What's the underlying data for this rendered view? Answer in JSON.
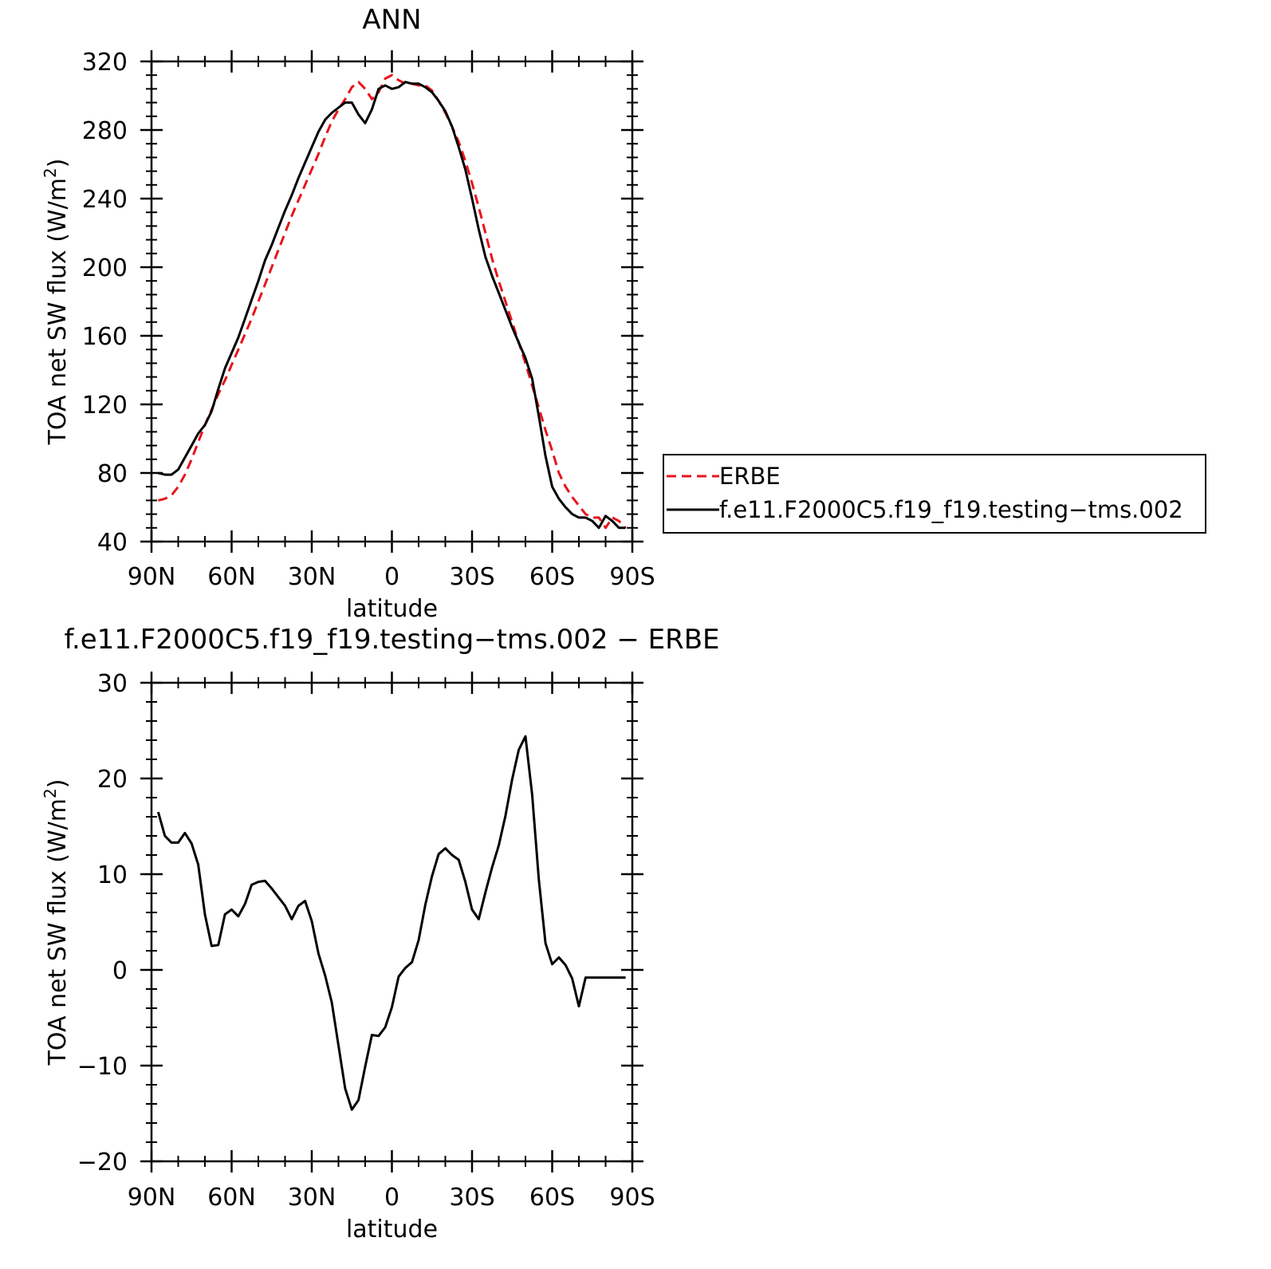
{
  "chart_data": [
    {
      "type": "line",
      "title": "ANN",
      "xlabel": "latitude",
      "ylabel_main": "TOA net SW flux (W/m",
      "ylabel_sup": "2",
      "ylabel_close": ")",
      "xlim": [
        90,
        -90
      ],
      "ylim": [
        40,
        320
      ],
      "x_ticks": [
        90,
        60,
        30,
        0,
        -30,
        -60,
        -90
      ],
      "x_tick_labels": [
        "90N",
        "60N",
        "30N",
        "0",
        "30S",
        "60S",
        "90S"
      ],
      "y_ticks": [
        40,
        80,
        120,
        160,
        200,
        240,
        280,
        320
      ],
      "y_tick_labels": [
        "40",
        "80",
        "120",
        "160",
        "200",
        "240",
        "280",
        "320"
      ],
      "legend_position": "right",
      "series": [
        {
          "name": "ERBE",
          "color": "#e8141c",
          "dash": "dashed",
          "x": [
            87.5,
            85,
            82.5,
            80,
            77.5,
            75,
            72.5,
            70,
            67.5,
            65,
            62.5,
            60,
            57.5,
            55,
            52.5,
            50,
            47.5,
            45,
            42.5,
            40,
            37.5,
            35,
            32.5,
            30,
            27.5,
            25,
            22.5,
            20,
            17.5,
            15,
            12.5,
            10,
            7.5,
            5,
            2.5,
            0,
            -2.5,
            -5,
            -7.5,
            -10,
            -12.5,
            -15,
            -17.5,
            -20,
            -22.5,
            -25,
            -27.5,
            -30,
            -32.5,
            -35,
            -37.5,
            -40,
            -42.5,
            -45,
            -47.5,
            -50,
            -52.5,
            -55,
            -57.5,
            -60,
            -62.5,
            -65,
            -67.5,
            -70,
            -72.5,
            -75,
            -77.5,
            -80,
            -82.5,
            -85,
            -87.5
          ],
          "y": [
            64,
            65,
            67,
            72,
            79,
            88,
            98,
            108,
            117,
            126,
            134,
            143,
            152,
            161,
            170,
            180,
            190,
            200,
            210,
            220,
            230,
            239,
            248,
            257,
            266,
            276,
            285,
            292,
            298,
            305,
            308,
            304,
            298,
            302,
            310,
            312,
            309,
            307,
            307,
            306,
            306,
            303,
            297,
            290,
            282,
            273,
            262,
            249,
            235,
            220,
            205,
            192,
            180,
            168,
            156,
            144,
            131,
            118,
            105,
            93,
            80,
            72,
            66,
            61,
            56,
            54,
            54,
            48,
            54,
            52,
            48
          ]
        },
        {
          "name": "f.e11.F2000C5.f19_f19.testing−tms.002",
          "color": "#000000",
          "dash": "solid",
          "x": [
            87.5,
            85,
            82.5,
            80,
            77.5,
            75,
            72.5,
            70,
            67.5,
            65,
            62.5,
            60,
            57.5,
            55,
            52.5,
            50,
            47.5,
            45,
            42.5,
            40,
            37.5,
            35,
            32.5,
            30,
            27.5,
            25,
            22.5,
            20,
            17.5,
            15,
            12.5,
            10,
            7.5,
            5,
            2.5,
            0,
            -2.5,
            -5,
            -7.5,
            -10,
            -12.5,
            -15,
            -17.5,
            -20,
            -22.5,
            -25,
            -27.5,
            -30,
            -32.5,
            -35,
            -37.5,
            -40,
            -42.5,
            -45,
            -47.5,
            -50,
            -52.5,
            -55,
            -57.5,
            -60,
            -62.5,
            -65,
            -67.5,
            -70,
            -72.5,
            -75,
            -77.5,
            -80,
            -82.5,
            -85,
            -87.5
          ],
          "y": [
            80,
            79,
            79,
            82,
            89,
            96,
            103,
            108,
            116,
            129,
            141,
            150,
            159,
            170,
            181,
            192,
            204,
            213,
            223,
            233,
            242,
            252,
            261,
            270,
            279,
            286,
            290,
            293,
            296,
            296,
            289,
            284,
            292,
            304,
            306,
            304,
            305,
            308,
            307,
            307,
            305,
            302,
            297,
            291,
            282,
            270,
            257,
            240,
            222,
            206,
            195,
            185,
            175,
            165,
            156,
            147,
            135,
            113,
            90,
            72,
            65,
            60,
            56,
            54,
            54,
            52,
            48,
            55,
            52,
            48,
            48
          ]
        }
      ]
    },
    {
      "type": "line",
      "title": "f.e11.F2000C5.f19_f19.testing−tms.002 − ERBE",
      "xlabel": "latitude",
      "ylabel_main": "TOA net SW flux (W/m",
      "ylabel_sup": "2",
      "ylabel_close": ")",
      "xlim": [
        90,
        -90
      ],
      "ylim": [
        -20,
        30
      ],
      "x_ticks": [
        90,
        60,
        30,
        0,
        -30,
        -60,
        -90
      ],
      "x_tick_labels": [
        "90N",
        "60N",
        "30N",
        "0",
        "30S",
        "60S",
        "90S"
      ],
      "y_ticks": [
        -20,
        -10,
        0,
        10,
        20,
        30
      ],
      "y_tick_labels": [
        "−20",
        "−10",
        "0",
        "10",
        "20",
        "30"
      ],
      "series": [
        {
          "color": "#000000",
          "dash": "solid",
          "x": [
            87.5,
            85,
            82.5,
            80,
            77.5,
            75,
            72.5,
            70,
            67.5,
            65,
            62.5,
            60,
            57.5,
            55,
            52.5,
            50,
            47.5,
            45,
            42.5,
            40,
            37.5,
            35,
            32.5,
            30,
            27.5,
            25,
            22.5,
            20,
            17.5,
            15,
            12.5,
            10,
            7.5,
            5,
            2.5,
            0,
            -2.5,
            -5,
            -7.5,
            -10,
            -12.5,
            -15,
            -17.5,
            -20,
            -22.5,
            -25,
            -27.5,
            -30,
            -32.5,
            -35,
            -37.5,
            -40,
            -42.5,
            -45,
            -47.5,
            -50,
            -52.5,
            -55,
            -57.5,
            -60,
            -62.5,
            -65,
            -67.5,
            -70,
            -72.5,
            -75,
            -77.5,
            -80,
            -82.5,
            -85,
            -87.5
          ],
          "y": [
            16.5,
            14.0,
            13.3,
            13.3,
            14.3,
            13.2,
            11.0,
            5.8,
            2.5,
            2.6,
            5.8,
            6.3,
            5.6,
            6.9,
            8.9,
            9.2,
            9.3,
            8.5,
            7.6,
            6.7,
            5.3,
            6.7,
            7.2,
            5.1,
            1.7,
            -0.6,
            -3.4,
            -7.9,
            -12.4,
            -14.6,
            -13.6,
            -10.1,
            -6.8,
            -6.9,
            -6.0,
            -3.9,
            -0.7,
            0.2,
            0.8,
            3.1,
            6.8,
            9.8,
            12.1,
            12.7,
            12.0,
            11.5,
            9.2,
            6.3,
            5.3,
            8.1,
            10.7,
            13.0,
            16.1,
            19.9,
            23.0,
            24.4,
            18.3,
            9.4,
            2.8,
            0.6,
            1.3,
            0.5,
            -0.9,
            -3.8,
            -0.8,
            -0.8,
            -0.8,
            -0.8,
            -0.8,
            -0.8,
            -0.8
          ]
        }
      ]
    }
  ]
}
